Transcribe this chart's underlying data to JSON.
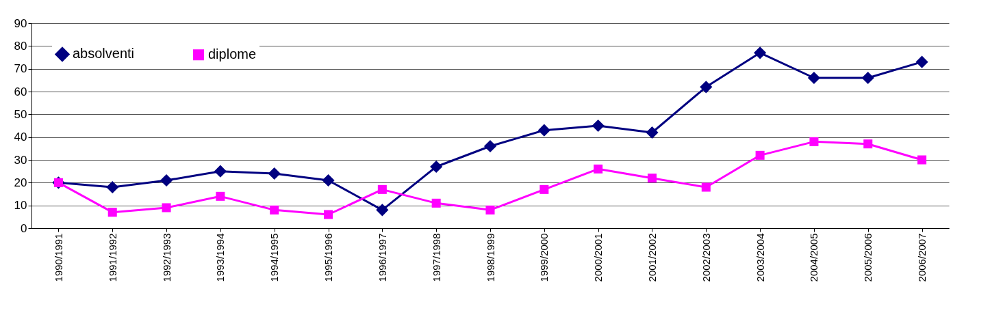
{
  "chart_data": {
    "type": "line",
    "categories": [
      "1990/1991",
      "1991/1992",
      "1992/1993",
      "1993/1994",
      "1994/1995",
      "1995/1996",
      "1996/1997",
      "1997/1998",
      "1998/1999",
      "1999/2000",
      "2000/2001",
      "2001/2002",
      "2002/2003",
      "2003/2004",
      "2004/2005",
      "2005/2006",
      "2006/2007"
    ],
    "series": [
      {
        "name": "absolventi",
        "color": "#000080",
        "marker": "diamond",
        "values": [
          20,
          18,
          21,
          25,
          24,
          21,
          8,
          27,
          36,
          43,
          45,
          42,
          62,
          77,
          66,
          66,
          73
        ]
      },
      {
        "name": "diplome",
        "color": "#ff00ff",
        "marker": "square",
        "values": [
          20,
          7,
          9,
          14,
          8,
          6,
          17,
          11,
          8,
          17,
          26,
          22,
          18,
          32,
          38,
          37,
          30
        ]
      }
    ],
    "ylim": [
      0,
      90
    ],
    "yticks": [
      0,
      10,
      20,
      30,
      40,
      50,
      60,
      70,
      80,
      90
    ],
    "grid": "y",
    "legend": "top left",
    "line_style": "solid"
  }
}
